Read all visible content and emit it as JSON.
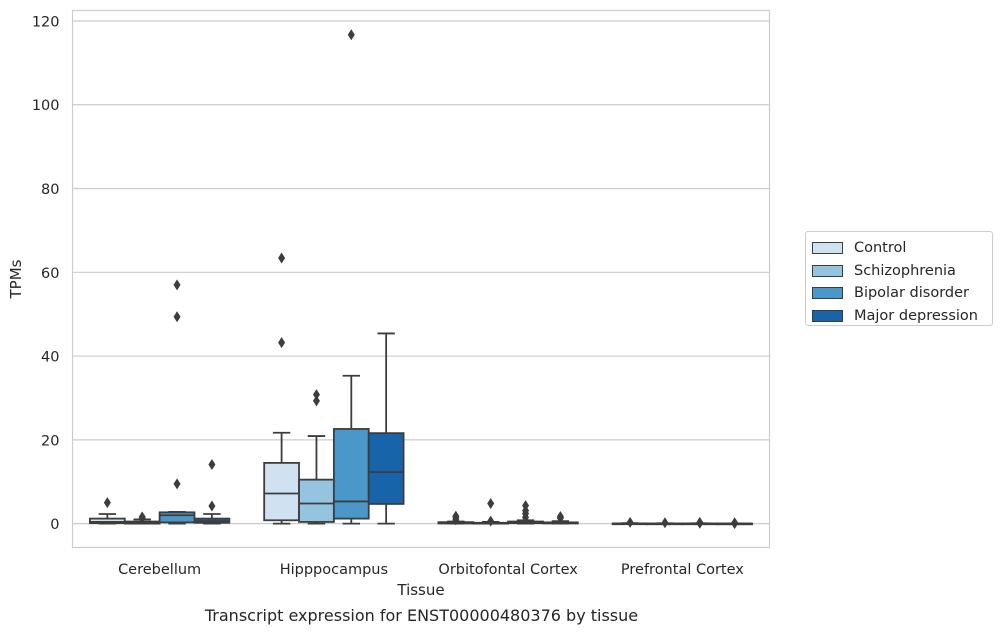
{
  "chart_data": {
    "type": "box",
    "xlabel": "Tissue",
    "ylabel": "TPMs",
    "ylim": [
      -5.7,
      122.5
    ],
    "yticks": [
      0,
      20,
      40,
      60,
      80,
      100,
      120
    ],
    "grid": "horizontal",
    "legend_position": "right",
    "categories": [
      "Cerebellum",
      "Hipppocampus",
      "Orbitofontal Cortex",
      "Prefrontal Cortex"
    ],
    "series": [
      {
        "name": "Control",
        "color": "#d0e1f2",
        "boxes": [
          {
            "whisker_low": 0,
            "q1": 0.1,
            "median": 0.4,
            "q3": 1.2,
            "whisker_high": 2.3,
            "outliers": [
              5.0
            ]
          },
          {
            "whisker_low": 0,
            "q1": 0.8,
            "median": 7.2,
            "q3": 14.5,
            "whisker_high": 21.7,
            "outliers": [
              43.2,
              63.4
            ]
          },
          {
            "whisker_low": 0,
            "q1": 0.05,
            "median": 0.1,
            "q3": 0.35,
            "whisker_high": 0.5,
            "outliers": [
              0.9,
              1.4,
              1.8
            ]
          },
          {
            "whisker_low": 0,
            "q1": 0,
            "median": 0.02,
            "q3": 0.05,
            "whisker_high": 0.1,
            "outliers": [
              0.3
            ]
          }
        ]
      },
      {
        "name": "Schizophrenia",
        "color": "#94c4df",
        "boxes": [
          {
            "whisker_low": 0,
            "q1": 0,
            "median": 0.2,
            "q3": 0.5,
            "whisker_high": 1.0,
            "outliers": [
              1.3,
              1.6
            ]
          },
          {
            "whisker_low": 0,
            "q1": 0.4,
            "median": 4.8,
            "q3": 10.5,
            "whisker_high": 20.9,
            "outliers": [
              29.3,
              30.8
            ]
          },
          {
            "whisker_low": 0,
            "q1": 0,
            "median": 0.05,
            "q3": 0.2,
            "whisker_high": 0.4,
            "outliers": [
              0.6,
              4.8
            ]
          },
          {
            "whisker_low": 0,
            "q1": 0,
            "median": 0.01,
            "q3": 0.04,
            "whisker_high": 0.08,
            "outliers": [
              0.2
            ]
          }
        ]
      },
      {
        "name": "Bipolar disorder",
        "color": "#4a98c9",
        "boxes": [
          {
            "whisker_low": 0,
            "q1": 0.3,
            "median": 2.0,
            "q3": 2.7,
            "whisker_high": 2.8,
            "outliers": [
              9.5,
              49.4,
              57.0
            ]
          },
          {
            "whisker_low": 0,
            "q1": 1.2,
            "median": 5.3,
            "q3": 22.6,
            "whisker_high": 35.3,
            "outliers": [
              116.7
            ]
          },
          {
            "whisker_low": 0,
            "q1": 0.1,
            "median": 0.3,
            "q3": 0.5,
            "whisker_high": 0.8,
            "outliers": [
              1.5,
              2.4,
              3.1,
              4.3
            ]
          },
          {
            "whisker_low": 0,
            "q1": 0,
            "median": 0.01,
            "q3": 0.04,
            "whisker_high": 0.08,
            "outliers": [
              0.1,
              0.3
            ]
          }
        ]
      },
      {
        "name": "Major depression",
        "color": "#1764ab",
        "boxes": [
          {
            "whisker_low": 0,
            "q1": 0.2,
            "median": 0.6,
            "q3": 1.2,
            "whisker_high": 2.3,
            "outliers": [
              4.2,
              14.1
            ]
          },
          {
            "whisker_low": 0,
            "q1": 4.7,
            "median": 12.3,
            "q3": 21.6,
            "whisker_high": 45.4,
            "outliers": []
          },
          {
            "whisker_low": 0,
            "q1": 0.05,
            "median": 0.1,
            "q3": 0.3,
            "whisker_high": 0.6,
            "outliers": [
              1.3,
              1.7
            ]
          },
          {
            "whisker_low": 0,
            "q1": 0,
            "median": 0.01,
            "q3": 0.03,
            "whisker_high": 0.05,
            "outliers": [
              0.0,
              0.2
            ]
          }
        ]
      }
    ]
  },
  "caption": "Transcript expression for ENST00000480376 by tissue"
}
